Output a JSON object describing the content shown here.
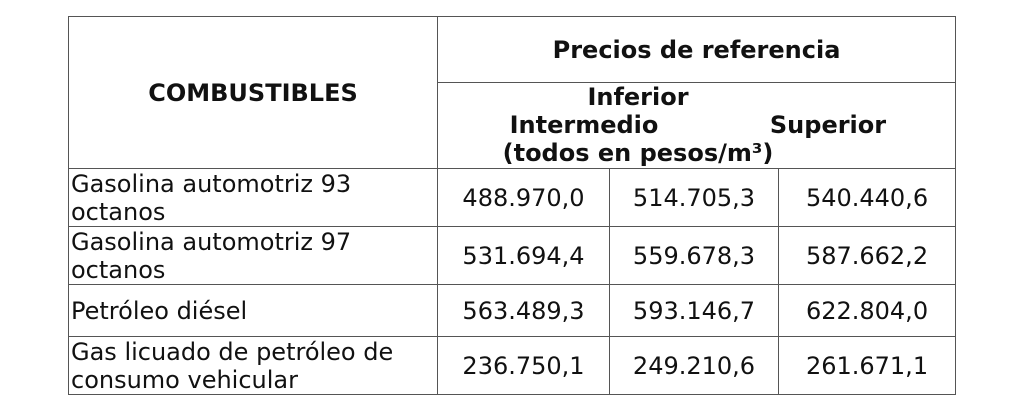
{
  "table": {
    "col_header": "COMBUSTIBLES",
    "group_header": "Precios de referencia",
    "sub_inferior": "Inferior",
    "sub_intermedio": "Intermedio",
    "sub_superior": "Superior",
    "sub_units": "(todos en pesos/m³)",
    "rows": [
      {
        "name": "Gasolina automotriz 93 octanos",
        "inferior": "488.970,0",
        "intermedio": "514.705,3",
        "superior": "540.440,6"
      },
      {
        "name": "Gasolina automotriz 97 octanos",
        "inferior": "531.694,4",
        "intermedio": "559.678,3",
        "superior": "587.662,2"
      },
      {
        "name": "Petróleo diésel",
        "inferior": "563.489,3",
        "intermedio": "593.146,7",
        "superior": "622.804,0"
      },
      {
        "name": "Gas licuado de petróleo de consumo vehicular",
        "inferior": "236.750,1",
        "intermedio": "249.210,6",
        "superior": "261.671,1"
      }
    ]
  }
}
